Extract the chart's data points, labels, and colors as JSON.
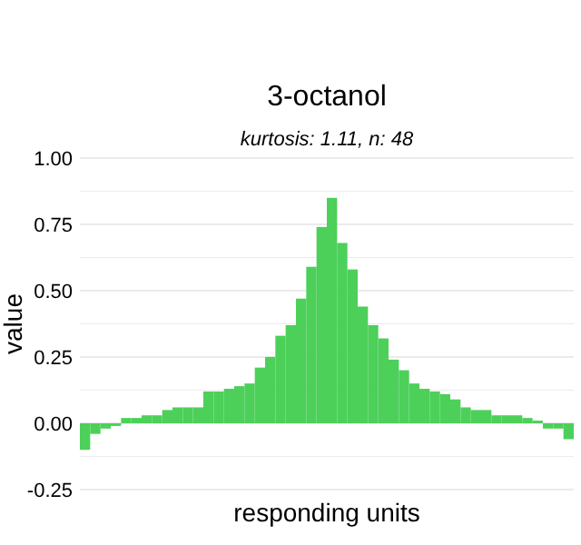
{
  "chart_data": {
    "type": "bar",
    "title": "3-octanol",
    "subtitle": "kurtosis: 1.11, n: 48",
    "xlabel": "responding units",
    "ylabel": "value",
    "categories": [
      null,
      null,
      null,
      null,
      null,
      null,
      null,
      null,
      null,
      null,
      null,
      null,
      null,
      null,
      null,
      null,
      null,
      null,
      null,
      null,
      null,
      null,
      null,
      null,
      null,
      null,
      null,
      null,
      null,
      null,
      null,
      null,
      null,
      null,
      null,
      null,
      null,
      null,
      null,
      null,
      null,
      null,
      null,
      null,
      null,
      null,
      null,
      null
    ],
    "values": [
      -0.1,
      -0.04,
      -0.02,
      -0.01,
      0.02,
      0.02,
      0.03,
      0.03,
      0.05,
      0.06,
      0.06,
      0.06,
      0.12,
      0.12,
      0.13,
      0.14,
      0.15,
      0.21,
      0.25,
      0.33,
      0.37,
      0.47,
      0.59,
      0.74,
      0.85,
      0.68,
      0.58,
      0.44,
      0.37,
      0.32,
      0.24,
      0.2,
      0.15,
      0.13,
      0.12,
      0.11,
      0.09,
      0.06,
      0.05,
      0.05,
      0.03,
      0.03,
      0.03,
      0.02,
      0.01,
      -0.02,
      -0.02,
      -0.06
    ],
    "color": "#4cd05a",
    "ylim": [
      -0.25,
      1
    ],
    "yticks": [
      {
        "value": -0.25,
        "label": "-0.25"
      },
      {
        "value": -0.125,
        "label": null
      },
      {
        "value": 0,
        "label": "0.00"
      },
      {
        "value": 0.125,
        "label": null
      },
      {
        "value": 0.25,
        "label": "0.25"
      },
      {
        "value": 0.375,
        "label": null
      },
      {
        "value": 0.5,
        "label": "0.50"
      },
      {
        "value": 0.625,
        "label": null
      },
      {
        "value": 0.75,
        "label": "0.75"
      },
      {
        "value": 0.875,
        "label": null
      },
      {
        "value": 1,
        "label": "1.00"
      }
    ],
    "grid": "y"
  }
}
